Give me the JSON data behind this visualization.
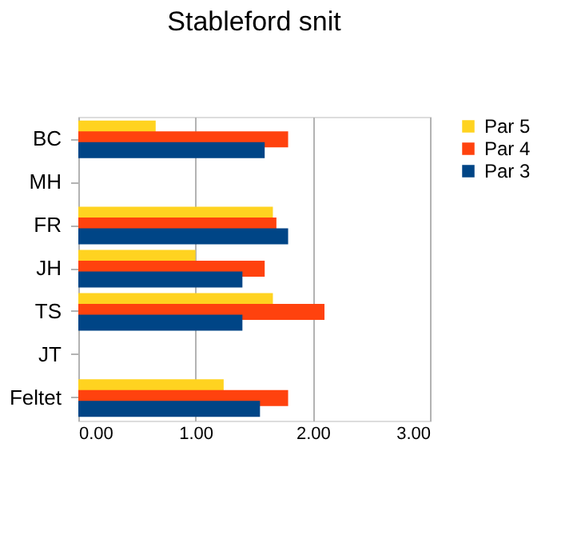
{
  "chart_data": {
    "type": "bar",
    "orientation": "horizontal",
    "title": "Stableford snit",
    "categories": [
      "BC",
      "MH",
      "FR",
      "JH",
      "TS",
      "JT",
      "Feltet"
    ],
    "series": [
      {
        "name": "Par 5",
        "color": "#ffd320",
        "values": [
          0.66,
          null,
          1.66,
          1.0,
          1.66,
          null,
          1.24
        ]
      },
      {
        "name": "Par 4",
        "color": "#ff420e",
        "values": [
          1.79,
          null,
          1.69,
          1.59,
          2.1,
          null,
          1.79
        ]
      },
      {
        "name": "Par 3",
        "color": "#004586",
        "values": [
          1.59,
          null,
          1.79,
          1.4,
          1.4,
          null,
          1.55
        ]
      }
    ],
    "xlim": [
      0,
      3
    ],
    "xticks": [
      {
        "value": 0,
        "label": "0.00"
      },
      {
        "value": 1,
        "label": "1.00"
      },
      {
        "value": 2,
        "label": "2.00"
      },
      {
        "value": 3,
        "label": "3.00"
      }
    ],
    "grid": "x",
    "legend": "right"
  }
}
